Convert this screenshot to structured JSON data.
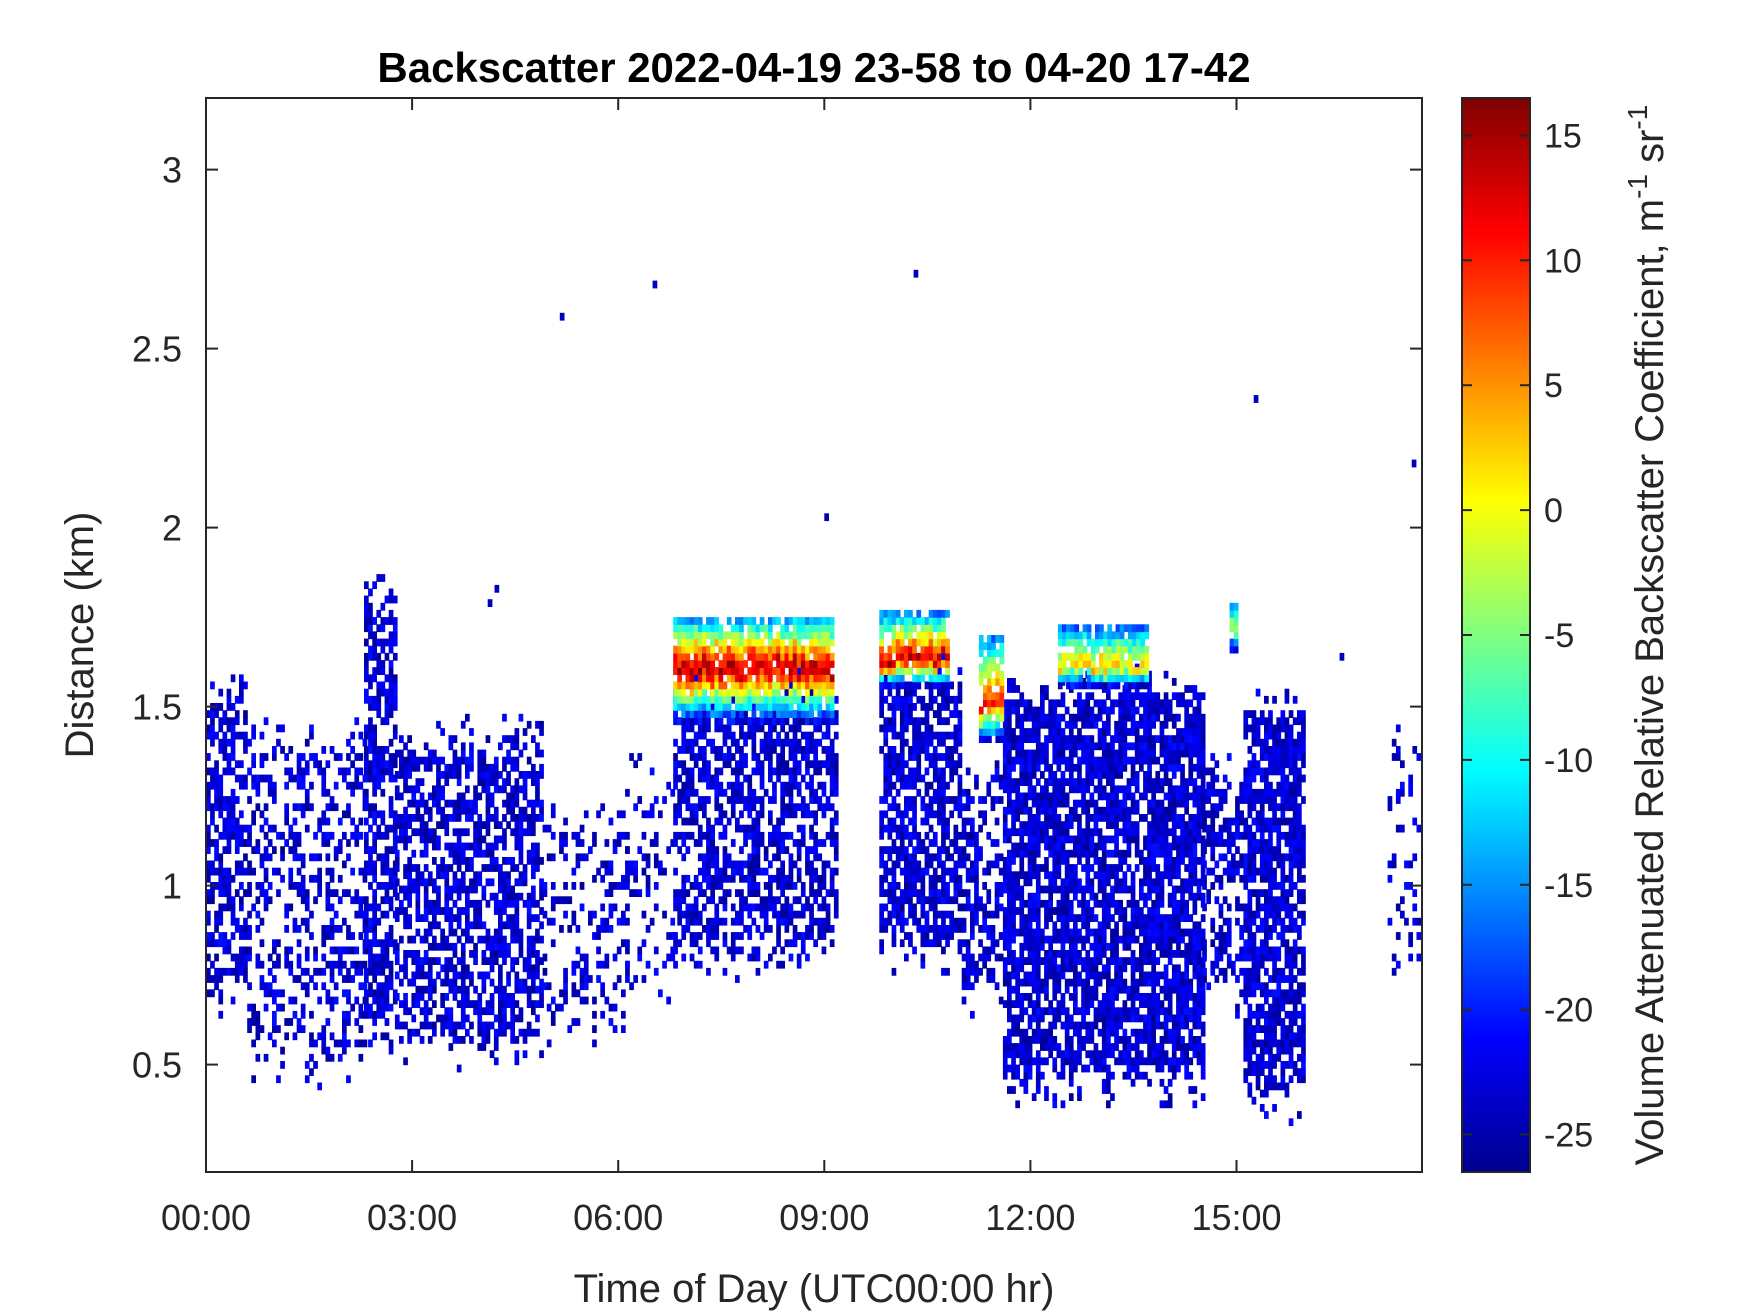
{
  "chart_data": {
    "type": "heatmap",
    "title": "Backscatter 2022-04-19 23-58 to 04-20 17-42",
    "xlabel": "Time of Day (UTC00:00 hr)",
    "ylabel": "Distance (km)",
    "colorbar_label": "Volume Attenuated Relative Backscatter Coefficient, m",
    "colorbar_label_sup1": "-1",
    "colorbar_label_mid": " sr",
    "colorbar_label_sup2": "-1",
    "colormap": "jet",
    "xlim_hours": [
      0,
      17.7
    ],
    "ylim_km": [
      0.2,
      3.2
    ],
    "clim": [
      -26.5,
      16.5
    ],
    "x_ticks": [
      {
        "value": 0,
        "label": "00:00"
      },
      {
        "value": 3,
        "label": "03:00"
      },
      {
        "value": 6,
        "label": "06:00"
      },
      {
        "value": 9,
        "label": "09:00"
      },
      {
        "value": 12,
        "label": "12:00"
      },
      {
        "value": 15,
        "label": "15:00"
      }
    ],
    "y_ticks": [
      {
        "value": 0.5,
        "label": "0.5"
      },
      {
        "value": 1,
        "label": "1"
      },
      {
        "value": 1.5,
        "label": "1.5"
      },
      {
        "value": 2,
        "label": "2"
      },
      {
        "value": 2.5,
        "label": "2.5"
      },
      {
        "value": 3,
        "label": "3"
      }
    ],
    "colorbar_ticks": [
      {
        "value": 15,
        "label": "15"
      },
      {
        "value": 10,
        "label": "10"
      },
      {
        "value": 5,
        "label": "5"
      },
      {
        "value": 0,
        "label": "0"
      },
      {
        "value": -5,
        "label": "-5"
      },
      {
        "value": -10,
        "label": "-10"
      },
      {
        "value": -15,
        "label": "-15"
      },
      {
        "value": -20,
        "label": "-20"
      },
      {
        "value": -25,
        "label": "-25"
      }
    ],
    "background_regions": [
      {
        "t0": 0.0,
        "t1": 0.6,
        "bottom": 0.75,
        "top": 1.48,
        "density": 0.55
      },
      {
        "t0": 0.6,
        "t1": 2.3,
        "bottom": 0.55,
        "top": 1.35,
        "density": 0.35
      },
      {
        "t0": 2.3,
        "t1": 2.75,
        "bottom": 0.65,
        "top": 1.75,
        "density": 0.6
      },
      {
        "t0": 2.75,
        "t1": 4.9,
        "bottom": 0.6,
        "top": 1.35,
        "density": 0.6
      },
      {
        "t0": 4.9,
        "t1": 6.1,
        "bottom": 0.65,
        "top": 1.15,
        "density": 0.3
      },
      {
        "t0": 6.1,
        "t1": 6.8,
        "bottom": 0.75,
        "top": 1.25,
        "density": 0.25
      },
      {
        "t0": 6.8,
        "t1": 9.15,
        "bottom": 0.85,
        "top": 1.5,
        "density": 0.6
      },
      {
        "t0": 9.8,
        "t1": 11.0,
        "bottom": 0.85,
        "top": 1.55,
        "density": 0.65
      },
      {
        "t0": 11.0,
        "t1": 11.6,
        "bottom": 0.75,
        "top": 1.25,
        "density": 0.5
      },
      {
        "t0": 11.6,
        "t1": 14.5,
        "bottom": 0.5,
        "top": 1.5,
        "density": 0.75
      },
      {
        "t0": 14.5,
        "t1": 15.1,
        "bottom": 0.75,
        "top": 1.25,
        "density": 0.55
      },
      {
        "t0": 15.1,
        "t1": 15.95,
        "bottom": 0.45,
        "top": 1.45,
        "density": 0.75
      },
      {
        "t0": 17.2,
        "t1": 17.65,
        "bottom": 0.85,
        "top": 1.35,
        "density": 0.25
      }
    ],
    "aerosol_layers": [
      {
        "t0": 6.8,
        "t1": 9.1,
        "base_km": 1.45,
        "peak_km": 1.6,
        "top_km": 1.75,
        "peak_value": 15
      },
      {
        "t0": 9.8,
        "t1": 10.8,
        "base_km": 1.55,
        "peak_km": 1.62,
        "top_km": 1.76,
        "peak_value": 14
      },
      {
        "t0": 11.25,
        "t1": 11.6,
        "base_km": 1.4,
        "peak_km": 1.5,
        "top_km": 1.7,
        "peak_value": 10
      },
      {
        "t0": 12.4,
        "t1": 13.7,
        "base_km": 1.55,
        "peak_km": 1.6,
        "top_km": 1.72,
        "peak_value": 3
      },
      {
        "t0": 14.9,
        "t1": 15.0,
        "base_km": 1.65,
        "peak_km": 1.72,
        "top_km": 1.78,
        "peak_value": -2
      }
    ],
    "isolated_points": [
      {
        "t": 5.15,
        "km": 2.58,
        "value": -24
      },
      {
        "t": 6.5,
        "km": 2.67,
        "value": -24
      },
      {
        "t": 10.3,
        "km": 2.7,
        "value": -24
      },
      {
        "t": 9.0,
        "km": 2.02,
        "value": -24
      },
      {
        "t": 15.25,
        "km": 2.35,
        "value": -24
      },
      {
        "t": 17.55,
        "km": 2.17,
        "value": -24
      },
      {
        "t": 4.2,
        "km": 1.82,
        "value": -24
      },
      {
        "t": 4.1,
        "km": 1.78,
        "value": -24
      },
      {
        "t": 16.5,
        "km": 1.63,
        "value": -24
      }
    ]
  }
}
